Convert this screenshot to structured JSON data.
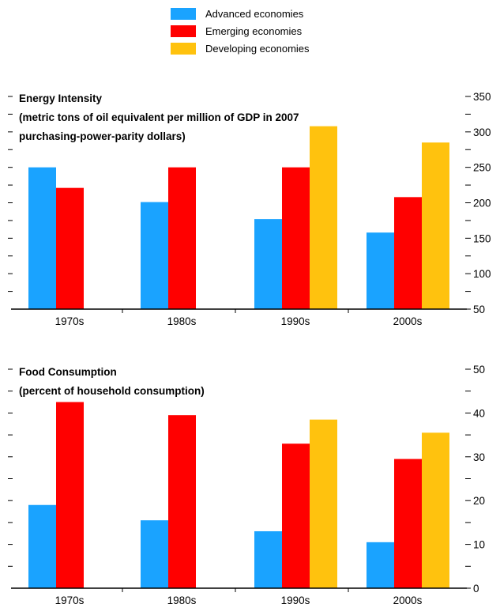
{
  "legend": [
    {
      "name": "Advanced economies",
      "color": "#1aa3ff"
    },
    {
      "name": "Emerging economies",
      "color": "#ff0000"
    },
    {
      "name": "Developing economies",
      "color": "#ffc20e"
    }
  ],
  "chart_data": [
    {
      "type": "bar",
      "title_lines": [
        "Energy Intensity",
        "(metric tons of oil equivalent per million of GDP in 2007",
        "purchasing-power-parity dollars)"
      ],
      "categories": [
        "1970s",
        "1980s",
        "1990s",
        "2000s"
      ],
      "series": [
        {
          "name": "Advanced economies",
          "values": [
            250,
            201,
            177,
            158
          ]
        },
        {
          "name": "Emerging economies",
          "values": [
            221,
            250,
            250,
            208
          ]
        },
        {
          "name": "Developing economies",
          "values": [
            null,
            null,
            308,
            285
          ]
        }
      ],
      "ylim": [
        50,
        350
      ],
      "yticks": [
        50,
        100,
        150,
        200,
        250,
        300,
        350
      ],
      "ytick_labels": [
        "50",
        "100",
        "150",
        "200",
        "250",
        "300",
        "350"
      ],
      "yaxis_side": "right",
      "grid": false
    },
    {
      "type": "bar",
      "title_lines": [
        "Food Consumption",
        "(percent of household consumption)"
      ],
      "categories": [
        "1970s",
        "1980s",
        "1990s",
        "2000s"
      ],
      "series": [
        {
          "name": "Advanced economies",
          "values": [
            19,
            15.5,
            13,
            10.5
          ]
        },
        {
          "name": "Emerging economies",
          "values": [
            42.5,
            39.5,
            33,
            29.5
          ]
        },
        {
          "name": "Developing economies",
          "values": [
            null,
            null,
            38.5,
            35.5
          ]
        }
      ],
      "ylim": [
        0,
        50
      ],
      "yticks": [
        0,
        10,
        20,
        30,
        40,
        50
      ],
      "ytick_labels": [
        "0",
        "10",
        "20",
        "30",
        "40",
        "50"
      ],
      "yaxis_side": "right",
      "grid": false
    }
  ]
}
